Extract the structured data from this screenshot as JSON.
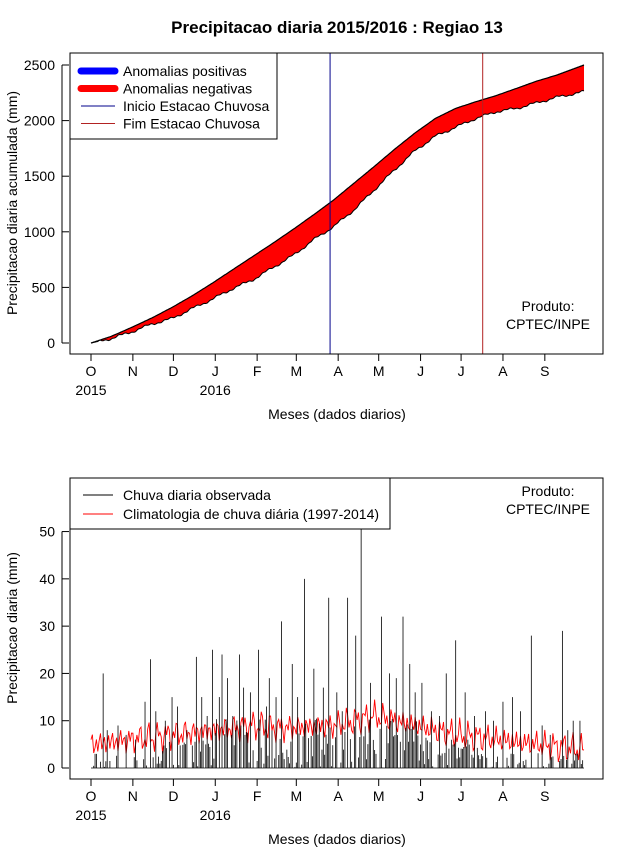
{
  "title": "Precipitacao diaria 2015/2016 : Regiao 13",
  "months": [
    "O",
    "N",
    "D",
    "J",
    "F",
    "M",
    "A",
    "M",
    "J",
    "J",
    "A",
    "S"
  ],
  "year_labels": [
    {
      "label": "2015",
      "month_index": 0
    },
    {
      "label": "2016",
      "month_index": 3
    }
  ],
  "credit": [
    "Produto:",
    "CPTEC/INPE"
  ],
  "colors": {
    "positive": "#0000ff",
    "negative": "#ff0000",
    "start": "#00008b",
    "end": "#b22222",
    "observed": "#000000",
    "climatology": "#ff0000"
  },
  "chart_data": [
    {
      "type": "area",
      "id": "accumulated",
      "xlabel": "Meses (dados diarios)",
      "ylabel": "Precipitacao diaria acumulada (mm)",
      "ylim": [
        0,
        2500
      ],
      "yticks": [
        0,
        500,
        1000,
        1500,
        2000,
        2500
      ],
      "x_unit": "day since 2015-10-01",
      "month_starts": [
        0,
        31,
        61,
        92,
        123,
        152,
        183,
        213,
        244,
        274,
        305,
        336
      ],
      "xlim": [
        0,
        365
      ],
      "legend": {
        "placement": "top-left",
        "entries": [
          {
            "label": "Anomalias positivas",
            "style": "thick",
            "color_key": "positive"
          },
          {
            "label": "Anomalias negativas",
            "style": "thick",
            "color_key": "negative"
          },
          {
            "label": "Inicio Estacao Chuvosa",
            "style": "thin",
            "color_key": "start"
          },
          {
            "label": "Fim Estacao Chuvosa",
            "style": "thin",
            "color_key": "end"
          }
        ]
      },
      "vlines": [
        {
          "name": "Inicio Estacao Chuvosa",
          "day": 177
        },
        {
          "name": "Fim Estacao Chuvosa",
          "day": 290
        }
      ],
      "series": [
        {
          "name": "Climatologia acumulada",
          "x": [
            0,
            15,
            30,
            45,
            60,
            75,
            90,
            105,
            120,
            135,
            150,
            165,
            180,
            195,
            210,
            225,
            240,
            255,
            270,
            285,
            300,
            315,
            330,
            345,
            365
          ],
          "values": [
            0,
            60,
            140,
            225,
            320,
            425,
            540,
            660,
            780,
            900,
            1025,
            1155,
            1290,
            1440,
            1590,
            1745,
            1890,
            2020,
            2110,
            2170,
            2225,
            2290,
            2355,
            2410,
            2500
          ]
        },
        {
          "name": "Observada acumulada",
          "x": [
            0,
            15,
            30,
            45,
            60,
            75,
            90,
            105,
            120,
            135,
            150,
            165,
            180,
            195,
            210,
            225,
            240,
            255,
            270,
            285,
            300,
            315,
            330,
            345,
            365
          ],
          "values": [
            0,
            40,
            100,
            170,
            220,
            310,
            395,
            490,
            570,
            680,
            790,
            930,
            1050,
            1200,
            1380,
            1560,
            1730,
            1860,
            1940,
            2020,
            2080,
            2110,
            2160,
            2210,
            2260
          ]
        }
      ]
    },
    {
      "type": "line",
      "id": "daily",
      "xlabel": "Meses (dados diarios)",
      "ylabel": "Precipitacao diaria (mm)",
      "ylim": [
        0,
        59
      ],
      "yticks": [
        0,
        10,
        20,
        30,
        40,
        50
      ],
      "x_unit": "day since 2015-10-01",
      "xlim": [
        0,
        365
      ],
      "legend": {
        "placement": "top-left",
        "entries": [
          {
            "label": "Chuva diaria observada",
            "color_key": "observed"
          },
          {
            "label": "Climatologia de chuva diária (1997-2014)",
            "color_key": "climatology"
          }
        ]
      },
      "series": [
        {
          "name": "Chuva diaria observada",
          "style": "spikes",
          "days": [
            3,
            9,
            12,
            20,
            26,
            33,
            40,
            44,
            48,
            55,
            60,
            64,
            71,
            78,
            82,
            86,
            90,
            95,
            97,
            101,
            105,
            110,
            113,
            118,
            124,
            130,
            132,
            137,
            141,
            149,
            153,
            158,
            165,
            172,
            176,
            182,
            186,
            190,
            196,
            200,
            207,
            215,
            221,
            226,
            231,
            236,
            240,
            245,
            252,
            258,
            263,
            270,
            277,
            284,
            292,
            298,
            305,
            312,
            318,
            326,
            334,
            340,
            349,
            353,
            357,
            362
          ],
          "values": [
            3,
            20,
            8,
            9,
            7,
            6,
            14,
            23,
            12,
            10,
            15,
            13,
            8,
            23.5,
            15,
            11,
            25,
            15,
            24,
            19,
            11,
            24,
            17,
            16,
            25,
            13,
            19,
            15,
            31,
            22,
            15,
            40,
            21,
            17,
            36,
            16,
            12,
            36,
            28,
            57.5,
            18,
            32,
            20,
            19,
            32,
            22,
            16,
            18,
            12,
            11,
            20,
            27,
            16,
            11,
            12,
            10,
            14,
            15,
            12,
            28,
            9,
            7,
            29,
            8,
            10,
            10
          ]
        },
        {
          "name": "Climatologia de chuva diária (1997-2014)",
          "style": "line",
          "x": [
            0,
            15,
            30,
            45,
            60,
            75,
            90,
            105,
            120,
            135,
            150,
            165,
            180,
            195,
            210,
            225,
            240,
            255,
            270,
            285,
            300,
            315,
            330,
            345,
            365
          ],
          "values": [
            5,
            5.5,
            6,
            6.5,
            7,
            7.5,
            8,
            8.5,
            9,
            8.5,
            8.5,
            8.8,
            9,
            10,
            11,
            10,
            9,
            8,
            7,
            6.5,
            6,
            5.5,
            5,
            4.5,
            4
          ]
        }
      ]
    }
  ]
}
